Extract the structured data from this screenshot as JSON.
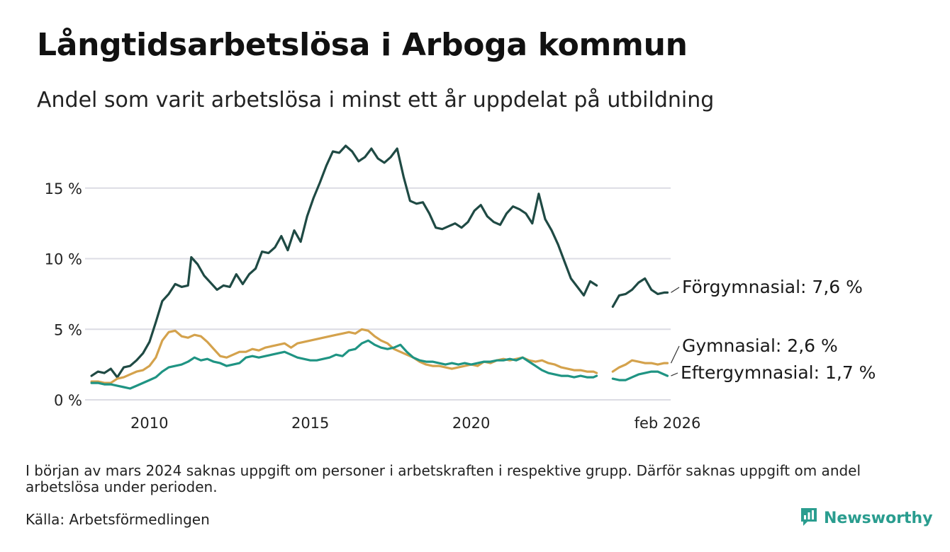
{
  "title": "Långtidsarbetslösa i Arboga kommun",
  "subtitle": "Andel som varit arbetslösa i minst ett år uppdelat på utbildning",
  "footnote": "I början av mars 2024 saknas uppgift om personer i arbetskraften i respektive grupp. Därför saknas uppgift om andel arbetslösa under perioden.",
  "source": "Källa: Arbetsförmedlingen",
  "brand": "Newsworthy",
  "colors": {
    "forgymnasial": "#1f4a44",
    "gymnasial": "#d4a24c",
    "eftergymnasial": "#1f9483",
    "grid": "#dcdce4",
    "brand": "#2a9d8f"
  },
  "chart_data": {
    "type": "line",
    "xlim": [
      2008.0,
      2026.2
    ],
    "ylim": [
      0,
      18.5
    ],
    "yticks": [
      0,
      5,
      10,
      15
    ],
    "ytick_labels": [
      "0 %",
      "5 %",
      "10 %",
      "15 %"
    ],
    "xticks": [
      2010,
      2015,
      2020,
      2026.1
    ],
    "xtick_labels": [
      "2010",
      "2015",
      "2020",
      "feb 2026"
    ],
    "gap": [
      2024.0,
      2024.33
    ],
    "series": [
      {
        "name": "Förgymnasial",
        "label": "Förgymnasial: 7,6 %",
        "color_key": "forgymnasial",
        "points": [
          [
            2008.2,
            1.7
          ],
          [
            2008.4,
            2.0
          ],
          [
            2008.6,
            1.9
          ],
          [
            2008.8,
            2.2
          ],
          [
            2009.0,
            1.6
          ],
          [
            2009.2,
            2.3
          ],
          [
            2009.4,
            2.4
          ],
          [
            2009.6,
            2.8
          ],
          [
            2009.8,
            3.3
          ],
          [
            2010.0,
            4.1
          ],
          [
            2010.2,
            5.5
          ],
          [
            2010.4,
            7.0
          ],
          [
            2010.6,
            7.5
          ],
          [
            2010.8,
            8.2
          ],
          [
            2011.0,
            8.0
          ],
          [
            2011.2,
            8.1
          ],
          [
            2011.3,
            10.1
          ],
          [
            2011.5,
            9.6
          ],
          [
            2011.7,
            8.8
          ],
          [
            2011.9,
            8.3
          ],
          [
            2012.1,
            7.8
          ],
          [
            2012.3,
            8.1
          ],
          [
            2012.5,
            8.0
          ],
          [
            2012.7,
            8.9
          ],
          [
            2012.9,
            8.2
          ],
          [
            2013.1,
            8.9
          ],
          [
            2013.3,
            9.3
          ],
          [
            2013.5,
            10.5
          ],
          [
            2013.7,
            10.4
          ],
          [
            2013.9,
            10.8
          ],
          [
            2014.1,
            11.6
          ],
          [
            2014.3,
            10.6
          ],
          [
            2014.5,
            12.0
          ],
          [
            2014.7,
            11.2
          ],
          [
            2014.9,
            13.0
          ],
          [
            2015.1,
            14.3
          ],
          [
            2015.3,
            15.4
          ],
          [
            2015.5,
            16.6
          ],
          [
            2015.7,
            17.6
          ],
          [
            2015.9,
            17.5
          ],
          [
            2016.1,
            18.0
          ],
          [
            2016.3,
            17.6
          ],
          [
            2016.5,
            16.9
          ],
          [
            2016.7,
            17.2
          ],
          [
            2016.9,
            17.8
          ],
          [
            2017.1,
            17.1
          ],
          [
            2017.3,
            16.8
          ],
          [
            2017.5,
            17.2
          ],
          [
            2017.7,
            17.8
          ],
          [
            2017.9,
            15.8
          ],
          [
            2018.1,
            14.1
          ],
          [
            2018.3,
            13.9
          ],
          [
            2018.5,
            14.0
          ],
          [
            2018.7,
            13.2
          ],
          [
            2018.9,
            12.2
          ],
          [
            2019.1,
            12.1
          ],
          [
            2019.3,
            12.3
          ],
          [
            2019.5,
            12.5
          ],
          [
            2019.7,
            12.2
          ],
          [
            2019.9,
            12.6
          ],
          [
            2020.1,
            13.4
          ],
          [
            2020.3,
            13.8
          ],
          [
            2020.5,
            13.0
          ],
          [
            2020.7,
            12.6
          ],
          [
            2020.9,
            12.4
          ],
          [
            2021.1,
            13.2
          ],
          [
            2021.3,
            13.7
          ],
          [
            2021.5,
            13.5
          ],
          [
            2021.7,
            13.2
          ],
          [
            2021.9,
            12.5
          ],
          [
            2022.1,
            14.6
          ],
          [
            2022.3,
            12.8
          ],
          [
            2022.5,
            12.0
          ],
          [
            2022.7,
            11.0
          ],
          [
            2022.9,
            9.8
          ],
          [
            2023.1,
            8.6
          ],
          [
            2023.3,
            8.0
          ],
          [
            2023.5,
            7.4
          ],
          [
            2023.7,
            8.4
          ],
          [
            2023.9,
            8.1
          ],
          [
            2024.4,
            6.6
          ],
          [
            2024.6,
            7.4
          ],
          [
            2024.8,
            7.5
          ],
          [
            2025.0,
            7.8
          ],
          [
            2025.2,
            8.3
          ],
          [
            2025.4,
            8.6
          ],
          [
            2025.6,
            7.8
          ],
          [
            2025.8,
            7.5
          ],
          [
            2026.0,
            7.6
          ],
          [
            2026.1,
            7.6
          ]
        ]
      },
      {
        "name": "Gymnasial",
        "label": "Gymnasial: 2,6 %",
        "color_key": "gymnasial",
        "points": [
          [
            2008.2,
            1.3
          ],
          [
            2008.4,
            1.3
          ],
          [
            2008.6,
            1.2
          ],
          [
            2008.8,
            1.2
          ],
          [
            2009.0,
            1.5
          ],
          [
            2009.2,
            1.6
          ],
          [
            2009.4,
            1.8
          ],
          [
            2009.6,
            2.0
          ],
          [
            2009.8,
            2.1
          ],
          [
            2010.0,
            2.4
          ],
          [
            2010.2,
            3.0
          ],
          [
            2010.4,
            4.2
          ],
          [
            2010.6,
            4.8
          ],
          [
            2010.8,
            4.9
          ],
          [
            2011.0,
            4.5
          ],
          [
            2011.2,
            4.4
          ],
          [
            2011.4,
            4.6
          ],
          [
            2011.6,
            4.5
          ],
          [
            2011.8,
            4.1
          ],
          [
            2012.0,
            3.6
          ],
          [
            2012.2,
            3.1
          ],
          [
            2012.4,
            3.0
          ],
          [
            2012.6,
            3.2
          ],
          [
            2012.8,
            3.4
          ],
          [
            2013.0,
            3.4
          ],
          [
            2013.2,
            3.6
          ],
          [
            2013.4,
            3.5
          ],
          [
            2013.6,
            3.7
          ],
          [
            2013.8,
            3.8
          ],
          [
            2014.0,
            3.9
          ],
          [
            2014.2,
            4.0
          ],
          [
            2014.4,
            3.7
          ],
          [
            2014.6,
            4.0
          ],
          [
            2014.8,
            4.1
          ],
          [
            2015.0,
            4.2
          ],
          [
            2015.2,
            4.3
          ],
          [
            2015.4,
            4.4
          ],
          [
            2015.6,
            4.5
          ],
          [
            2015.8,
            4.6
          ],
          [
            2016.0,
            4.7
          ],
          [
            2016.2,
            4.8
          ],
          [
            2016.4,
            4.7
          ],
          [
            2016.6,
            5.0
          ],
          [
            2016.8,
            4.9
          ],
          [
            2017.0,
            4.5
          ],
          [
            2017.2,
            4.2
          ],
          [
            2017.4,
            4.0
          ],
          [
            2017.6,
            3.6
          ],
          [
            2017.8,
            3.4
          ],
          [
            2018.0,
            3.2
          ],
          [
            2018.2,
            3.0
          ],
          [
            2018.4,
            2.7
          ],
          [
            2018.6,
            2.5
          ],
          [
            2018.8,
            2.4
          ],
          [
            2019.0,
            2.4
          ],
          [
            2019.2,
            2.3
          ],
          [
            2019.4,
            2.2
          ],
          [
            2019.6,
            2.3
          ],
          [
            2019.8,
            2.4
          ],
          [
            2020.0,
            2.5
          ],
          [
            2020.2,
            2.4
          ],
          [
            2020.4,
            2.7
          ],
          [
            2020.6,
            2.6
          ],
          [
            2020.8,
            2.8
          ],
          [
            2021.0,
            2.9
          ],
          [
            2021.2,
            2.8
          ],
          [
            2021.4,
            2.9
          ],
          [
            2021.6,
            3.0
          ],
          [
            2021.8,
            2.8
          ],
          [
            2022.0,
            2.7
          ],
          [
            2022.2,
            2.8
          ],
          [
            2022.4,
            2.6
          ],
          [
            2022.6,
            2.5
          ],
          [
            2022.8,
            2.3
          ],
          [
            2023.0,
            2.2
          ],
          [
            2023.2,
            2.1
          ],
          [
            2023.4,
            2.1
          ],
          [
            2023.6,
            2.0
          ],
          [
            2023.8,
            2.0
          ],
          [
            2023.9,
            1.9
          ],
          [
            2024.4,
            2.0
          ],
          [
            2024.6,
            2.3
          ],
          [
            2024.8,
            2.5
          ],
          [
            2025.0,
            2.8
          ],
          [
            2025.2,
            2.7
          ],
          [
            2025.4,
            2.6
          ],
          [
            2025.6,
            2.6
          ],
          [
            2025.8,
            2.5
          ],
          [
            2026.0,
            2.6
          ],
          [
            2026.1,
            2.6
          ]
        ]
      },
      {
        "name": "Eftergymnasial",
        "label": "Eftergymnasial: 1,7 %",
        "color_key": "eftergymnasial",
        "points": [
          [
            2008.2,
            1.2
          ],
          [
            2008.4,
            1.2
          ],
          [
            2008.6,
            1.1
          ],
          [
            2008.8,
            1.1
          ],
          [
            2009.0,
            1.0
          ],
          [
            2009.2,
            0.9
          ],
          [
            2009.4,
            0.8
          ],
          [
            2009.6,
            1.0
          ],
          [
            2009.8,
            1.2
          ],
          [
            2010.0,
            1.4
          ],
          [
            2010.2,
            1.6
          ],
          [
            2010.4,
            2.0
          ],
          [
            2010.6,
            2.3
          ],
          [
            2010.8,
            2.4
          ],
          [
            2011.0,
            2.5
          ],
          [
            2011.2,
            2.7
          ],
          [
            2011.4,
            3.0
          ],
          [
            2011.6,
            2.8
          ],
          [
            2011.8,
            2.9
          ],
          [
            2012.0,
            2.7
          ],
          [
            2012.2,
            2.6
          ],
          [
            2012.4,
            2.4
          ],
          [
            2012.6,
            2.5
          ],
          [
            2012.8,
            2.6
          ],
          [
            2013.0,
            3.0
          ],
          [
            2013.2,
            3.1
          ],
          [
            2013.4,
            3.0
          ],
          [
            2013.6,
            3.1
          ],
          [
            2013.8,
            3.2
          ],
          [
            2014.0,
            3.3
          ],
          [
            2014.2,
            3.4
          ],
          [
            2014.4,
            3.2
          ],
          [
            2014.6,
            3.0
          ],
          [
            2014.8,
            2.9
          ],
          [
            2015.0,
            2.8
          ],
          [
            2015.2,
            2.8
          ],
          [
            2015.4,
            2.9
          ],
          [
            2015.6,
            3.0
          ],
          [
            2015.8,
            3.2
          ],
          [
            2016.0,
            3.1
          ],
          [
            2016.2,
            3.5
          ],
          [
            2016.4,
            3.6
          ],
          [
            2016.6,
            4.0
          ],
          [
            2016.8,
            4.2
          ],
          [
            2017.0,
            3.9
          ],
          [
            2017.2,
            3.7
          ],
          [
            2017.4,
            3.6
          ],
          [
            2017.6,
            3.7
          ],
          [
            2017.8,
            3.9
          ],
          [
            2018.0,
            3.4
          ],
          [
            2018.2,
            3.0
          ],
          [
            2018.4,
            2.8
          ],
          [
            2018.6,
            2.7
          ],
          [
            2018.8,
            2.7
          ],
          [
            2019.0,
            2.6
          ],
          [
            2019.2,
            2.5
          ],
          [
            2019.4,
            2.6
          ],
          [
            2019.6,
            2.5
          ],
          [
            2019.8,
            2.6
          ],
          [
            2020.0,
            2.5
          ],
          [
            2020.2,
            2.6
          ],
          [
            2020.4,
            2.7
          ],
          [
            2020.6,
            2.7
          ],
          [
            2020.8,
            2.8
          ],
          [
            2021.0,
            2.8
          ],
          [
            2021.2,
            2.9
          ],
          [
            2021.4,
            2.8
          ],
          [
            2021.6,
            3.0
          ],
          [
            2021.8,
            2.7
          ],
          [
            2022.0,
            2.4
          ],
          [
            2022.2,
            2.1
          ],
          [
            2022.4,
            1.9
          ],
          [
            2022.6,
            1.8
          ],
          [
            2022.8,
            1.7
          ],
          [
            2023.0,
            1.7
          ],
          [
            2023.2,
            1.6
          ],
          [
            2023.4,
            1.7
          ],
          [
            2023.6,
            1.6
          ],
          [
            2023.8,
            1.6
          ],
          [
            2023.9,
            1.7
          ],
          [
            2024.4,
            1.5
          ],
          [
            2024.6,
            1.4
          ],
          [
            2024.8,
            1.4
          ],
          [
            2025.0,
            1.6
          ],
          [
            2025.2,
            1.8
          ],
          [
            2025.4,
            1.9
          ],
          [
            2025.6,
            2.0
          ],
          [
            2025.8,
            2.0
          ],
          [
            2026.0,
            1.8
          ],
          [
            2026.1,
            1.7
          ]
        ]
      }
    ]
  }
}
